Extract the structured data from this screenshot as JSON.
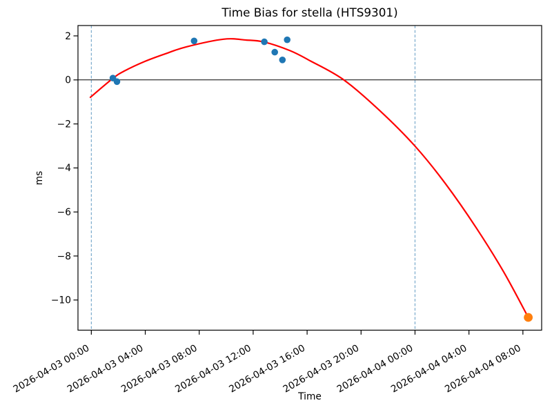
{
  "figure": {
    "background": "#ffffff"
  },
  "chart_data": {
    "type": "scatter",
    "title": "Time Bias for stella (HTS9301)",
    "xlabel": "Time",
    "ylabel": "ms",
    "x_unit": "hours since 2026-04-03 00:00",
    "xlim_hours": [
      -0.99,
      33.39
    ],
    "ylim": [
      -11.37,
      2.47
    ],
    "grid": false,
    "legend": "none",
    "x_ticks": {
      "hours": [
        0,
        4,
        8,
        12,
        16,
        20,
        24,
        28,
        32
      ],
      "labels": [
        "2026-04-03 00:00",
        "2026-04-03 04:00",
        "2026-04-03 08:00",
        "2026-04-03 12:00",
        "2026-04-03 16:00",
        "2026-04-03 20:00",
        "2026-04-04 00:00",
        "2026-04-04 04:00",
        "2026-04-04 08:00"
      ],
      "rotation_deg": 30
    },
    "y_ticks": {
      "values": [
        2,
        0,
        -2,
        -4,
        -6,
        -8,
        -10
      ],
      "labels": [
        "2",
        "0",
        "−2",
        "−4",
        "−6",
        "−8",
        "−10"
      ]
    },
    "zero_line_y": 0,
    "vline_guides_hours": [
      0,
      24
    ],
    "colors": {
      "measured_points": "#1f77b4",
      "extrapolated_point": "#ff7f0e",
      "fit_curve": "#ff0000",
      "day_guides": "#6ea3c8",
      "zero_line": "#000000",
      "spines": "#000000"
    },
    "series": [
      {
        "name": "measured-bias",
        "type": "scatter",
        "marker_radius": 4.8,
        "points_hours_ms": [
          [
            1.6,
            0.08
          ],
          [
            1.9,
            -0.08
          ],
          [
            7.62,
            1.77
          ],
          [
            12.83,
            1.73
          ],
          [
            13.6,
            1.26
          ],
          [
            14.17,
            0.91
          ],
          [
            14.52,
            1.82
          ]
        ]
      },
      {
        "name": "extrapolated-bias",
        "type": "scatter",
        "marker_radius": 6.4,
        "points_hours_ms": [
          [
            32.4,
            -10.79
          ]
        ]
      },
      {
        "name": "polynomial-fit",
        "type": "line",
        "line_width": 2.2,
        "points_hours_ms": [
          [
            -0.07,
            -0.79
          ],
          [
            1.6,
            0.07
          ],
          [
            2.44,
            0.4
          ],
          [
            3.97,
            0.84
          ],
          [
            5.51,
            1.19
          ],
          [
            7.04,
            1.5
          ],
          [
            9.8,
            1.85
          ],
          [
            11.5,
            1.81
          ],
          [
            12.83,
            1.72
          ],
          [
            14.73,
            1.33
          ],
          [
            16.25,
            0.86
          ],
          [
            18.72,
            0.0
          ],
          [
            21.37,
            -1.39
          ],
          [
            24.0,
            -3.01
          ],
          [
            26.24,
            -4.7
          ],
          [
            28.54,
            -6.72
          ],
          [
            30.58,
            -8.73
          ],
          [
            32.4,
            -10.79
          ]
        ]
      }
    ]
  }
}
